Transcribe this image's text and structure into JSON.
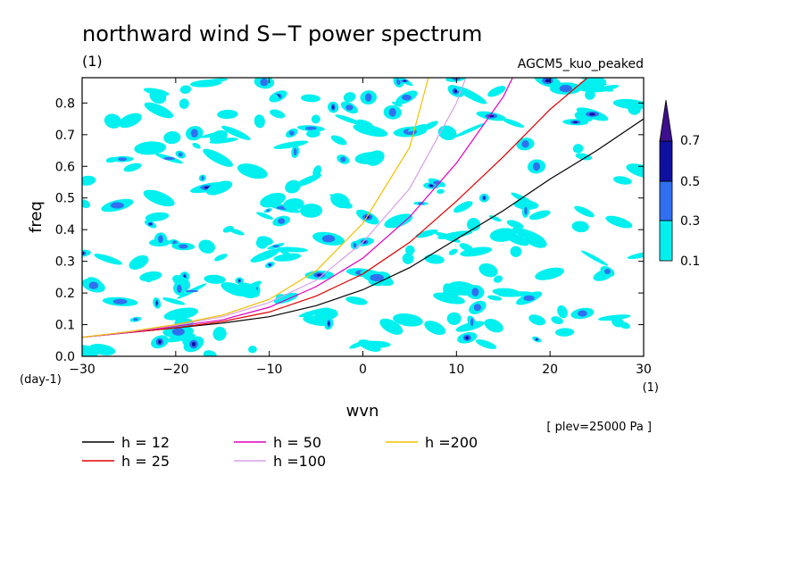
{
  "chart_data": {
    "type": "line",
    "title": "northward wind S−T power spectrum",
    "subtitle_left": "(1)",
    "subtitle_right": "AGCM5_kuo_peaked",
    "xlabel": "wvn",
    "ylabel": "freq",
    "x_unit_label": "(1)",
    "y_unit_label": "(day-1)",
    "xlim": [
      -30,
      30
    ],
    "ylim": [
      0,
      0.88
    ],
    "x_ticks": [
      -30,
      -20,
      -10,
      0,
      10,
      20,
      30
    ],
    "x_tick_labels": [
      "−30",
      "−20",
      "−10",
      "0",
      "10",
      "20",
      "30"
    ],
    "y_ticks": [
      0,
      0.1,
      0.2,
      0.3,
      0.4,
      0.5,
      0.6,
      0.7,
      0.8
    ],
    "y_tick_labels": [
      "0.0",
      "0.1",
      "0.2",
      "0.3",
      "0.4",
      "0.5",
      "0.6",
      "0.7",
      "0.8"
    ],
    "annotation": "[ plev=25000 Pa ]",
    "series": [
      {
        "name": "h = 12",
        "color": "#000000",
        "x": [
          -30,
          -25,
          -20,
          -15,
          -10,
          -5,
          0,
          5,
          10,
          15,
          20,
          25,
          30
        ],
        "y": [
          0.06,
          0.075,
          0.09,
          0.105,
          0.125,
          0.16,
          0.21,
          0.28,
          0.37,
          0.46,
          0.56,
          0.65,
          0.75
        ]
      },
      {
        "name": "h = 25",
        "color": "#e00000",
        "x": [
          -30,
          -25,
          -20,
          -15,
          -10,
          -5,
          0,
          5,
          10,
          15,
          20,
          24
        ],
        "y": [
          0.06,
          0.075,
          0.09,
          0.11,
          0.14,
          0.19,
          0.26,
          0.36,
          0.49,
          0.63,
          0.78,
          0.88
        ]
      },
      {
        "name": "h = 50",
        "color": "#e000c0",
        "x": [
          -30,
          -25,
          -20,
          -15,
          -10,
          -5,
          0,
          5,
          10,
          15,
          16
        ],
        "y": [
          0.06,
          0.076,
          0.095,
          0.115,
          0.155,
          0.22,
          0.31,
          0.44,
          0.61,
          0.82,
          0.88
        ]
      },
      {
        "name": "h =100",
        "color": "#d8a0e8",
        "x": [
          -30,
          -25,
          -20,
          -15,
          -10,
          -5,
          0,
          5,
          10,
          11
        ],
        "y": [
          0.06,
          0.077,
          0.098,
          0.125,
          0.17,
          0.24,
          0.36,
          0.53,
          0.8,
          0.88
        ]
      },
      {
        "name": "h =200",
        "color": "#f0c000",
        "x": [
          -30,
          -25,
          -20,
          -15,
          -10,
          -5,
          0,
          5,
          7
        ],
        "y": [
          0.06,
          0.078,
          0.1,
          0.13,
          0.18,
          0.27,
          0.42,
          0.66,
          0.88
        ]
      }
    ],
    "contour_legend": {
      "levels": [
        "0.1",
        "0.3",
        "0.5",
        "0.7"
      ],
      "colors": [
        "#00f0f0",
        "#3070f0",
        "#1010a0",
        "#3c108c"
      ]
    }
  }
}
